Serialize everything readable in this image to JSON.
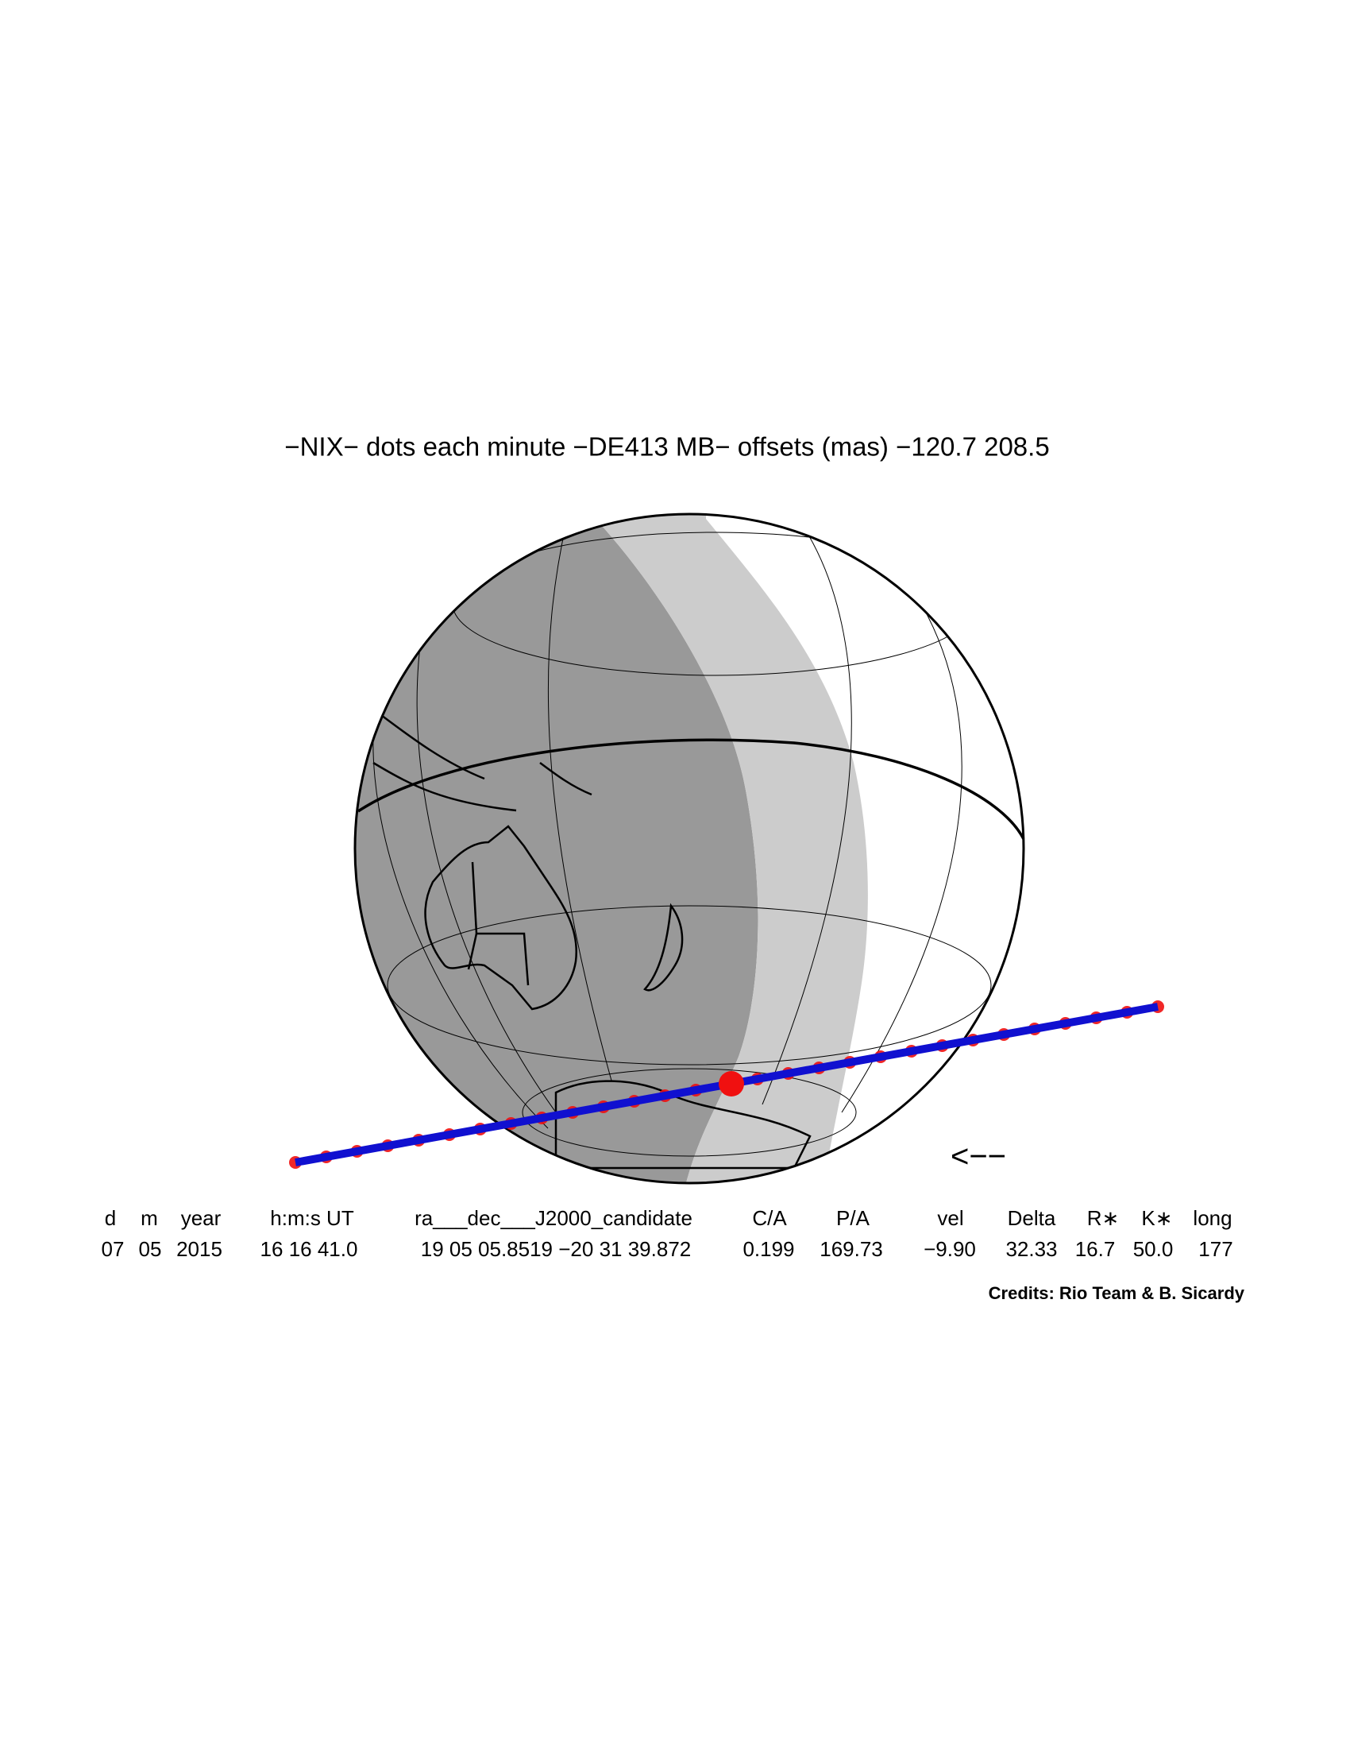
{
  "title": "−NIX− dots each minute −DE413 MB− offsets (mas) −120.7   208.5",
  "direction_arrow": "<−−",
  "table": {
    "header": [
      "d",
      "m",
      "year",
      "h:m:s UT",
      "ra___dec___J2000_candidate",
      "C/A",
      "P/A",
      "vel",
      "Delta",
      "R∗",
      "K∗",
      "long"
    ],
    "values": [
      "07",
      "05",
      "2015",
      "16 16 41.0",
      "19 05 05.8519 −20 31 39.872",
      "0.199",
      "169.73",
      "−9.90",
      "32.33",
      "16.7",
      "50.0",
      "177"
    ]
  },
  "credits": "Credits: Rio Team & B. Sicardy"
}
